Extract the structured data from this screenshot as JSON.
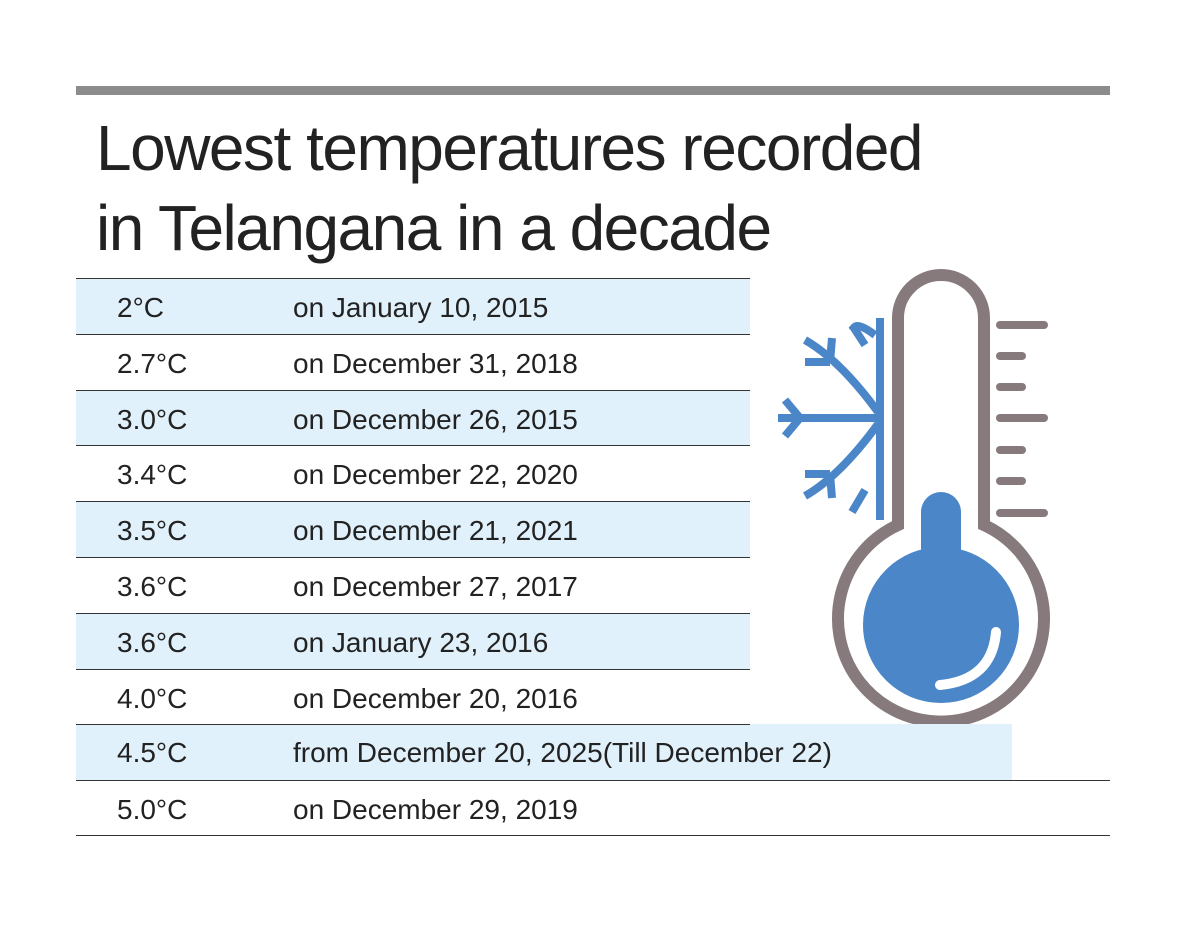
{
  "title_lines": [
    "Lowest temperatures recorded",
    "in Telangana in a decade"
  ],
  "colors": {
    "shade": "#e1f1fb",
    "icon_blue": "#4a86c8",
    "icon_gray": "#877a7d",
    "top_bar": "#8c8c8c"
  },
  "icons": [
    "thermometer-icon",
    "snowflake-icon"
  ],
  "chart_data": {
    "type": "table",
    "title": "Lowest temperatures recorded in Telangana in a decade",
    "rows": [
      {
        "temp": "2°C",
        "date": "on January 10, 2015"
      },
      {
        "temp": "2.7°C",
        "date": "on December 31, 2018"
      },
      {
        "temp": "3.0°C",
        "date": "on December 26, 2015"
      },
      {
        "temp": "3.4°C",
        "date": "on December 22, 2020"
      },
      {
        "temp": "3.5°C",
        "date": "on December 21, 2021"
      },
      {
        "temp": "3.6°C",
        "date": "on December 27, 2017"
      },
      {
        "temp": "3.6°C",
        "date": "on January 23, 2016"
      },
      {
        "temp": "4.0°C",
        "date": "on December 20, 2016"
      },
      {
        "temp": "4.5°C",
        "date": "from December 20, 2025(Till December 22)"
      },
      {
        "temp": "5.0°C",
        "date": "on December 29, 2019"
      }
    ]
  }
}
